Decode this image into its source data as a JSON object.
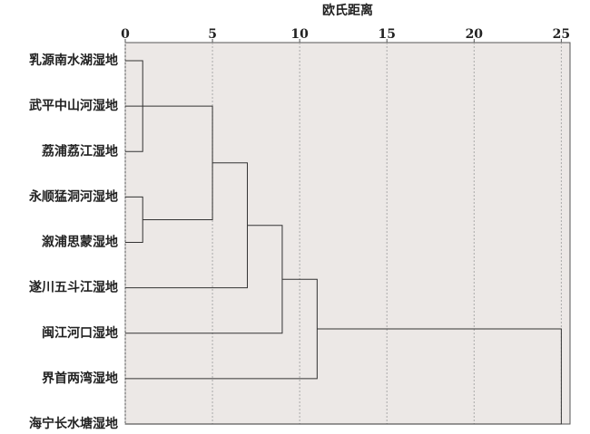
{
  "chart_data": {
    "type": "dendrogram",
    "x_label": "欧氏距离",
    "leaves": [
      "乳源南水湖湿地",
      "武平中山河湿地",
      "荔浦荔江湿地",
      "永顺猛洞河湿地",
      "溆浦思蒙湿地",
      "遂川五斗江湿地",
      "闽江河口湿地",
      "界首两湾湿地",
      "海宁长水塘湿地"
    ],
    "merges": [
      {
        "children": [
          0,
          2
        ],
        "distance": 1
      },
      {
        "children": [
          1,
          9
        ],
        "distance": 1
      },
      {
        "children": [
          3,
          4
        ],
        "distance": 1
      },
      {
        "children": [
          10,
          11
        ],
        "distance": 5
      },
      {
        "children": [
          12,
          5
        ],
        "distance": 7
      },
      {
        "children": [
          13,
          6
        ],
        "distance": 9
      },
      {
        "children": [
          14,
          7
        ],
        "distance": 11
      },
      {
        "children": [
          15,
          8
        ],
        "distance": 25
      }
    ],
    "xlim": [
      0,
      25.5
    ],
    "xticks": [
      0,
      5,
      10,
      15,
      20,
      25
    ],
    "grid": true,
    "color": "#333333",
    "background": "#ece8e6"
  }
}
